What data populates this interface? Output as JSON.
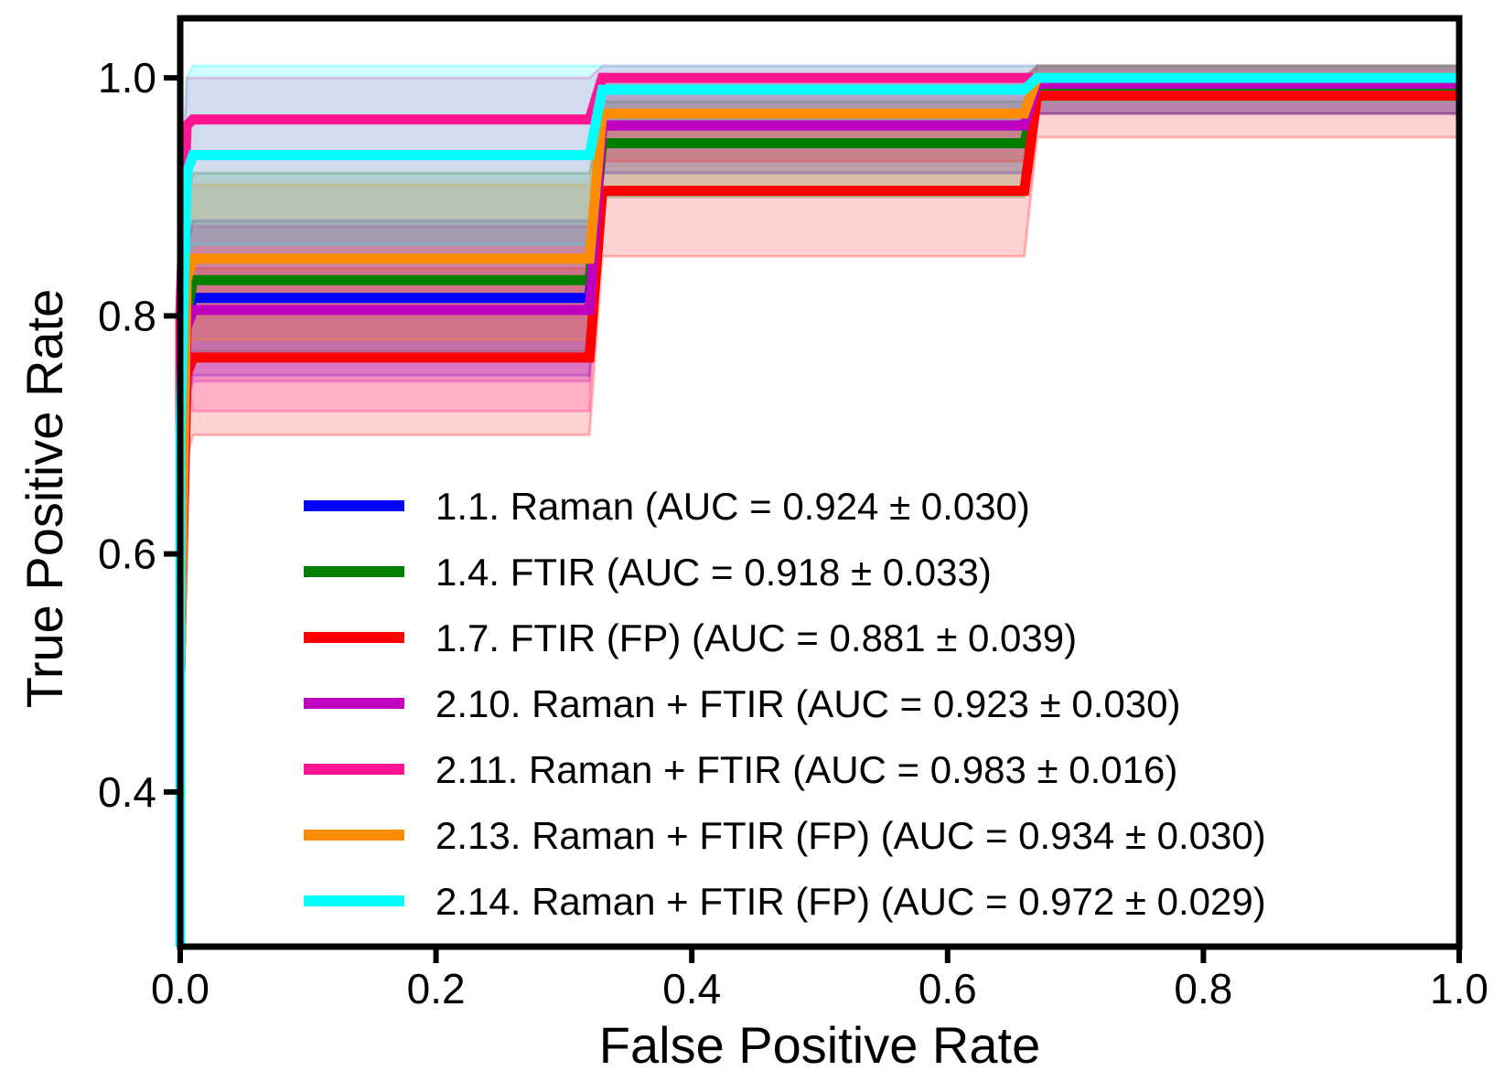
{
  "chart_data": {
    "type": "line",
    "subtype": "roc-with-confidence-bands",
    "xlabel": "False Positive Rate",
    "ylabel": "True Positive Rate",
    "xlim": [
      0.0,
      1.0
    ],
    "ylim": [
      0.27,
      1.05
    ],
    "xticks": [
      0.0,
      0.2,
      0.4,
      0.6,
      0.8,
      1.0
    ],
    "xtick_labels": [
      "0.0",
      "0.2",
      "0.4",
      "0.6",
      "0.8",
      "1.0"
    ],
    "yticks": [
      0.4,
      0.6,
      0.8,
      1.0
    ],
    "ytick_labels": [
      "0.4",
      "0.6",
      "0.8",
      "1.0"
    ],
    "grid": false,
    "legend_position": "lower-right",
    "series": [
      {
        "name": "1.1. Raman (AUC = 0.924 ± 0.030)",
        "color": "#0000ff",
        "x": [
          0.0,
          0.0,
          0.005,
          0.01,
          0.32,
          0.33,
          0.66,
          0.67,
          1.0
        ],
        "y": [
          0.27,
          0.5,
          0.8,
          0.815,
          0.815,
          0.96,
          0.96,
          0.99,
          0.99
        ],
        "lower": [
          0.27,
          0.45,
          0.72,
          0.75,
          0.75,
          0.92,
          0.92,
          0.97,
          0.97
        ],
        "upper": [
          0.27,
          0.55,
          0.86,
          0.88,
          0.88,
          1.0,
          1.0,
          1.01,
          1.01
        ]
      },
      {
        "name": "1.4. FTIR (AUC = 0.918 ± 0.033)",
        "color": "#007f00",
        "x": [
          0.0,
          0.0,
          0.005,
          0.01,
          0.32,
          0.33,
          0.66,
          0.67,
          1.0
        ],
        "y": [
          0.27,
          0.5,
          0.8,
          0.83,
          0.83,
          0.945,
          0.945,
          0.99,
          0.99
        ],
        "lower": [
          0.27,
          0.45,
          0.75,
          0.77,
          0.77,
          0.9,
          0.9,
          0.97,
          0.97
        ],
        "upper": [
          0.27,
          0.55,
          0.9,
          0.92,
          0.92,
          0.98,
          0.98,
          1.01,
          1.01
        ]
      },
      {
        "name": "1.7. FTIR (FP) (AUC = 0.881 ± 0.039)",
        "color": "#ff0000",
        "x": [
          0.0,
          0.0,
          0.005,
          0.01,
          0.32,
          0.33,
          0.66,
          0.67,
          1.0
        ],
        "y": [
          0.27,
          0.5,
          0.75,
          0.765,
          0.765,
          0.905,
          0.905,
          0.985,
          0.985
        ],
        "lower": [
          0.27,
          0.45,
          0.68,
          0.7,
          0.7,
          0.85,
          0.85,
          0.95,
          0.95
        ],
        "upper": [
          0.27,
          0.55,
          0.82,
          0.84,
          0.84,
          0.96,
          0.96,
          1.01,
          1.01
        ]
      },
      {
        "name": "2.10. Raman + FTIR (AUC = 0.923 ± 0.030)",
        "color": "#bf00bf",
        "x": [
          0.0,
          0.0,
          0.005,
          0.01,
          0.32,
          0.33,
          0.66,
          0.67,
          1.0
        ],
        "y": [
          0.27,
          0.5,
          0.79,
          0.805,
          0.805,
          0.96,
          0.96,
          0.995,
          0.995
        ],
        "lower": [
          0.27,
          0.45,
          0.73,
          0.745,
          0.745,
          0.93,
          0.93,
          0.97,
          0.97
        ],
        "upper": [
          0.27,
          0.55,
          0.86,
          0.875,
          0.875,
          1.0,
          1.0,
          1.01,
          1.01
        ]
      },
      {
        "name": "2.11. Raman + FTIR (AUC = 0.983 ± 0.016)",
        "color": "#ff1493",
        "x": [
          0.0,
          0.0,
          0.005,
          0.01,
          0.32,
          0.33,
          0.66,
          0.67,
          1.0
        ],
        "y": [
          0.27,
          0.8,
          0.96,
          0.965,
          0.965,
          1.0,
          1.0,
          1.0,
          1.0
        ],
        "lower": [
          0.27,
          0.7,
          0.75,
          0.72,
          0.72,
          0.96,
          0.96,
          0.98,
          0.98
        ],
        "upper": [
          0.27,
          0.85,
          1.0,
          1.0,
          1.0,
          1.01,
          1.01,
          1.01,
          1.01
        ]
      },
      {
        "name": "2.13. Raman + FTIR (FP) (AUC = 0.934 ± 0.030)",
        "color": "#ff8c00",
        "x": [
          0.0,
          0.0,
          0.005,
          0.01,
          0.32,
          0.33,
          0.66,
          0.67,
          1.0
        ],
        "y": [
          0.27,
          0.5,
          0.83,
          0.848,
          0.848,
          0.97,
          0.97,
          1.0,
          1.0
        ],
        "lower": [
          0.27,
          0.45,
          0.76,
          0.78,
          0.78,
          0.93,
          0.93,
          0.98,
          0.98
        ],
        "upper": [
          0.27,
          0.55,
          0.9,
          0.91,
          0.91,
          1.0,
          1.0,
          1.01,
          1.01
        ]
      },
      {
        "name": "2.14. Raman + FTIR (FP) (AUC = 0.972 ± 0.029)",
        "color": "#00ffff",
        "x": [
          0.0,
          0.0,
          0.005,
          0.01,
          0.32,
          0.33,
          0.66,
          0.67,
          1.0
        ],
        "y": [
          0.27,
          0.7,
          0.92,
          0.935,
          0.935,
          0.99,
          0.99,
          1.0,
          1.0
        ],
        "lower": [
          0.27,
          0.6,
          0.85,
          0.86,
          0.86,
          0.96,
          0.96,
          0.98,
          0.98
        ],
        "upper": [
          0.27,
          0.8,
          1.0,
          1.01,
          1.01,
          1.01,
          1.01,
          1.01,
          1.01
        ]
      }
    ]
  }
}
